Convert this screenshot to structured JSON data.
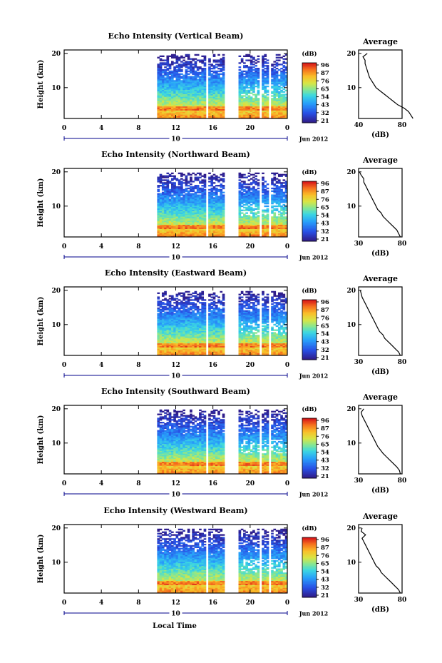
{
  "panels": [
    {
      "title": "Echo Intensity (Vertical Beam)",
      "ylabel": "Height (km)",
      "yticks": [
        "20",
        "10"
      ],
      "xticks": [
        "0",
        "4",
        "8",
        "12",
        "16",
        "20",
        "0"
      ],
      "day": "10",
      "date_label": "Jun 2012",
      "colorbar_unit": "(dB)",
      "colorbar_labels": [
        "96",
        "87",
        "76",
        "65",
        "54",
        "43",
        "32",
        "21"
      ],
      "avg_title": "Average",
      "avg_yticks": [
        "20",
        "10"
      ],
      "avg_xticks": [
        "40",
        "80"
      ],
      "avg_xlabel": "(dB)"
    },
    {
      "title": "Echo Intensity (Northward Beam)",
      "ylabel": "Height (km)",
      "yticks": [
        "20",
        "10"
      ],
      "xticks": [
        "0",
        "4",
        "8",
        "12",
        "16",
        "20",
        "0"
      ],
      "day": "10",
      "date_label": "Jun 2012",
      "colorbar_unit": "(dB)",
      "colorbar_labels": [
        "96",
        "87",
        "76",
        "65",
        "54",
        "43",
        "32",
        "21"
      ],
      "avg_title": "Average",
      "avg_yticks": [
        "20",
        "10"
      ],
      "avg_xticks": [
        "30",
        "80"
      ],
      "avg_xlabel": "(dB)"
    },
    {
      "title": "Echo Intensity (Eastward Beam)",
      "ylabel": "Height (km)",
      "yticks": [
        "20",
        "10"
      ],
      "xticks": [
        "0",
        "4",
        "8",
        "12",
        "16",
        "20",
        "0"
      ],
      "day": "10",
      "date_label": "Jun 2012",
      "colorbar_unit": "(dB)",
      "colorbar_labels": [
        "96",
        "87",
        "76",
        "65",
        "54",
        "43",
        "32",
        "21"
      ],
      "avg_title": "Average",
      "avg_yticks": [
        "20",
        "10"
      ],
      "avg_xticks": [
        "30",
        "80"
      ],
      "avg_xlabel": "(dB)"
    },
    {
      "title": "Echo Intensity (Southward Beam)",
      "ylabel": "Height (km)",
      "yticks": [
        "20",
        "10"
      ],
      "xticks": [
        "0",
        "4",
        "8",
        "12",
        "16",
        "20",
        "0"
      ],
      "day": "10",
      "date_label": "Jun 2012",
      "colorbar_unit": "(dB)",
      "colorbar_labels": [
        "96",
        "87",
        "76",
        "65",
        "54",
        "43",
        "32",
        "21"
      ],
      "avg_title": "Average",
      "avg_yticks": [
        "20",
        "10"
      ],
      "avg_xticks": [
        "30",
        "80"
      ],
      "avg_xlabel": "(dB)"
    },
    {
      "title": "Echo Intensity (Westward Beam)",
      "ylabel": "Height (km)",
      "yticks": [
        "20",
        "10"
      ],
      "xticks": [
        "0",
        "4",
        "8",
        "12",
        "16",
        "20",
        "0"
      ],
      "day": "10",
      "date_label": "Jun 2012",
      "colorbar_unit": "(dB)",
      "colorbar_labels": [
        "96",
        "87",
        "76",
        "65",
        "54",
        "43",
        "32",
        "21"
      ],
      "avg_title": "Average",
      "avg_yticks": [
        "20",
        "10"
      ],
      "avg_xticks": [
        "30",
        "80"
      ],
      "avg_xlabel": "(dB)"
    }
  ],
  "bottom_xlabel": "Local Time",
  "chart_data": [
    {
      "type": "heatmap",
      "title": "Echo Intensity (Vertical Beam)",
      "xlabel": "",
      "ylabel": "Height (km)",
      "xlim": [
        0,
        24
      ],
      "ylim": [
        1,
        21
      ],
      "x_unit": "hour (local time), 10 Jun 2012",
      "colorscale_db": [
        21,
        96
      ],
      "data_start_hour": 10,
      "data_gaps_hours": [
        [
          15.2,
          15.6
        ],
        [
          17.3,
          18.8
        ],
        [
          20.9,
          21.3
        ],
        [
          21.9,
          22.3
        ]
      ],
      "mean_profile": {
        "title": "Average",
        "xlabel": "(dB)",
        "height_km": [
          1,
          2,
          3,
          4,
          5,
          6,
          7,
          8,
          9,
          10,
          11,
          12,
          13,
          14,
          15,
          16,
          17,
          18,
          19,
          20
        ],
        "db": [
          90,
          88,
          86,
          82,
          76,
          72,
          68,
          64,
          60,
          56,
          54,
          52,
          50,
          49,
          48,
          47,
          46,
          46,
          44,
          48
        ]
      }
    },
    {
      "type": "heatmap",
      "title": "Echo Intensity (Northward Beam)",
      "xlabel": "",
      "ylabel": "Height (km)",
      "xlim": [
        0,
        24
      ],
      "ylim": [
        1,
        21
      ],
      "x_unit": "hour (local time), 10 Jun 2012",
      "colorscale_db": [
        21,
        96
      ],
      "data_start_hour": 10,
      "data_gaps_hours": [
        [
          15.2,
          15.6
        ],
        [
          17.3,
          18.8
        ],
        [
          20.9,
          21.3
        ],
        [
          21.9,
          22.3
        ]
      ],
      "mean_profile": {
        "title": "Average",
        "xlabel": "(dB)",
        "height_km": [
          1,
          2,
          3,
          4,
          5,
          6,
          7,
          8,
          9,
          10,
          11,
          12,
          13,
          14,
          15,
          16,
          17,
          18,
          19,
          20
        ],
        "db": [
          78,
          76,
          74,
          70,
          66,
          62,
          58,
          56,
          52,
          50,
          48,
          46,
          44,
          42,
          40,
          38,
          36,
          36,
          33,
          31
        ]
      }
    },
    {
      "type": "heatmap",
      "title": "Echo Intensity (Eastward Beam)",
      "xlabel": "",
      "ylabel": "Height (km)",
      "xlim": [
        0,
        24
      ],
      "ylim": [
        1,
        21
      ],
      "x_unit": "hour (local time), 10 Jun 2012",
      "colorscale_db": [
        21,
        96
      ],
      "data_start_hour": 10,
      "data_gaps_hours": [
        [
          15.2,
          15.6
        ],
        [
          17.3,
          18.8
        ],
        [
          20.9,
          21.3
        ],
        [
          21.9,
          22.3
        ]
      ],
      "mean_profile": {
        "title": "Average",
        "xlabel": "(dB)",
        "height_km": [
          1,
          2,
          3,
          4,
          5,
          6,
          7,
          8,
          9,
          10,
          11,
          12,
          13,
          14,
          15,
          16,
          17,
          18,
          19,
          20
        ],
        "db": [
          78,
          76,
          72,
          68,
          64,
          60,
          58,
          54,
          52,
          50,
          48,
          46,
          44,
          42,
          40,
          38,
          36,
          34,
          33,
          32
        ]
      }
    },
    {
      "type": "heatmap",
      "title": "Echo Intensity (Southward Beam)",
      "xlabel": "",
      "ylabel": "Height (km)",
      "xlim": [
        0,
        24
      ],
      "ylim": [
        1,
        21
      ],
      "x_unit": "hour (local time), 10 Jun 2012",
      "colorscale_db": [
        21,
        96
      ],
      "data_start_hour": 10,
      "data_gaps_hours": [
        [
          15.2,
          15.6
        ],
        [
          17.3,
          18.8
        ],
        [
          20.9,
          21.3
        ],
        [
          21.9,
          22.3
        ]
      ],
      "mean_profile": {
        "title": "Average",
        "xlabel": "(dB)",
        "height_km": [
          1,
          2,
          3,
          4,
          5,
          6,
          7,
          8,
          9,
          10,
          11,
          12,
          13,
          14,
          15,
          16,
          17,
          18,
          19,
          20
        ],
        "db": [
          78,
          77,
          74,
          70,
          66,
          62,
          58,
          55,
          52,
          50,
          48,
          46,
          44,
          42,
          40,
          38,
          36,
          34,
          33,
          36
        ]
      }
    },
    {
      "type": "heatmap",
      "title": "Echo Intensity (Westward Beam)",
      "xlabel": "Local Time",
      "ylabel": "Height (km)",
      "xlim": [
        0,
        24
      ],
      "ylim": [
        1,
        21
      ],
      "x_unit": "hour (local time), 10 Jun 2012",
      "colorscale_db": [
        21,
        96
      ],
      "data_start_hour": 10,
      "data_gaps_hours": [
        [
          15.2,
          15.6
        ],
        [
          17.3,
          18.8
        ],
        [
          20.9,
          21.3
        ],
        [
          21.9,
          22.3
        ]
      ],
      "mean_profile": {
        "title": "Average",
        "xlabel": "(dB)",
        "height_km": [
          1,
          2,
          3,
          4,
          5,
          6,
          7,
          8,
          9,
          10,
          11,
          12,
          13,
          14,
          15,
          16,
          17,
          18,
          19,
          20
        ],
        "db": [
          78,
          76,
          72,
          68,
          64,
          60,
          56,
          54,
          50,
          48,
          46,
          44,
          42,
          40,
          38,
          36,
          34,
          38,
          33,
          34
        ]
      }
    }
  ]
}
